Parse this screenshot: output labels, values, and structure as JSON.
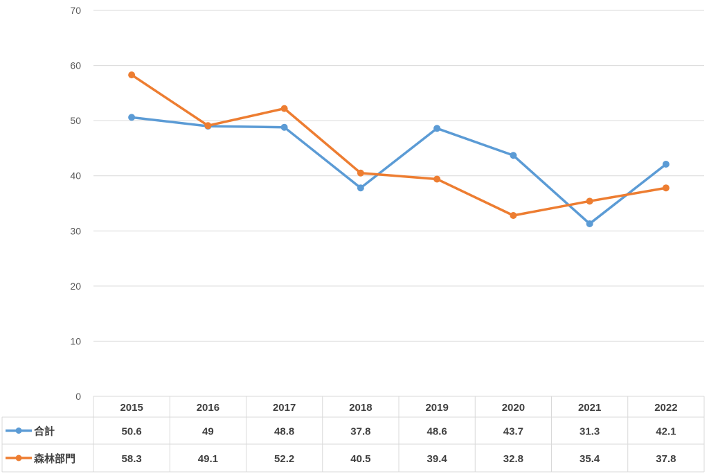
{
  "chart_data": {
    "type": "line",
    "categories": [
      "2015",
      "2016",
      "2017",
      "2018",
      "2019",
      "2020",
      "2021",
      "2022"
    ],
    "series": [
      {
        "name": "合計",
        "values": [
          50.6,
          49,
          48.8,
          37.8,
          48.6,
          43.7,
          31.3,
          42.1
        ],
        "labels": [
          "50.6",
          "49",
          "48.8",
          "37.8",
          "48.6",
          "43.7",
          "31.3",
          "42.1"
        ],
        "color": "#5b9bd5"
      },
      {
        "name": "森林部門",
        "values": [
          58.3,
          49.1,
          52.2,
          40.5,
          39.4,
          32.8,
          35.4,
          37.8
        ],
        "labels": [
          "58.3",
          "49.1",
          "52.2",
          "40.5",
          "39.4",
          "32.8",
          "35.4",
          "37.8"
        ],
        "color": "#ed7d31"
      }
    ],
    "yticks": [
      "0",
      "10",
      "20",
      "30",
      "40",
      "50",
      "60",
      "70"
    ],
    "ylim": [
      0,
      70
    ],
    "grid": true,
    "legend": "data-table"
  }
}
